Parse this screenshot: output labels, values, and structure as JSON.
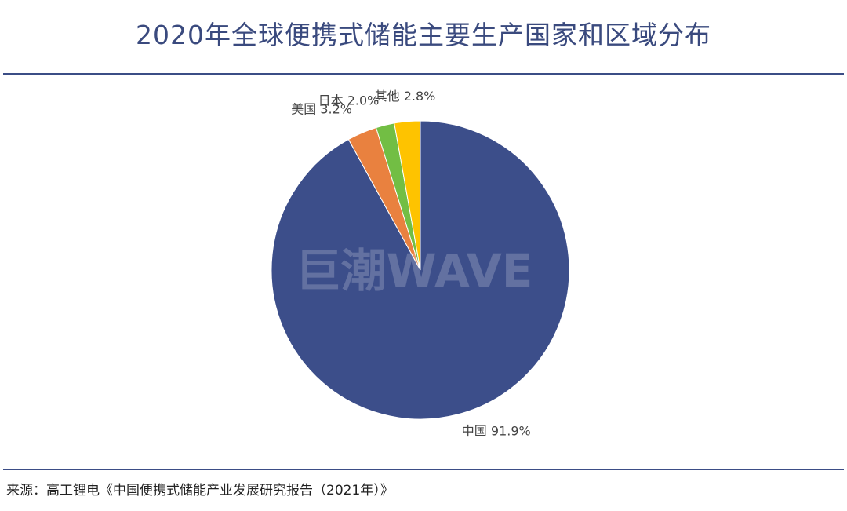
{
  "chart_data": {
    "type": "pie",
    "title": "2020年全球便携式储能主要生产国家和区域分布",
    "categories": [
      "中国",
      "美国",
      "日本",
      "其他"
    ],
    "values": [
      91.9,
      3.2,
      2.0,
      2.8
    ],
    "unit": "%",
    "labels": [
      "中国 91.9%",
      "美国 3.2%",
      "日本 2.0%",
      "其他 2.8%"
    ],
    "colors": [
      "#3c4e8a",
      "#e9813f",
      "#72be44",
      "#fec300"
    ],
    "start_angle_deg": 0,
    "direction": "clockwise",
    "legend": "none"
  },
  "watermark": "巨潮WAVE",
  "source": "来源：高工锂电《中国便携式储能产业发展研究报告（2021年）》"
}
